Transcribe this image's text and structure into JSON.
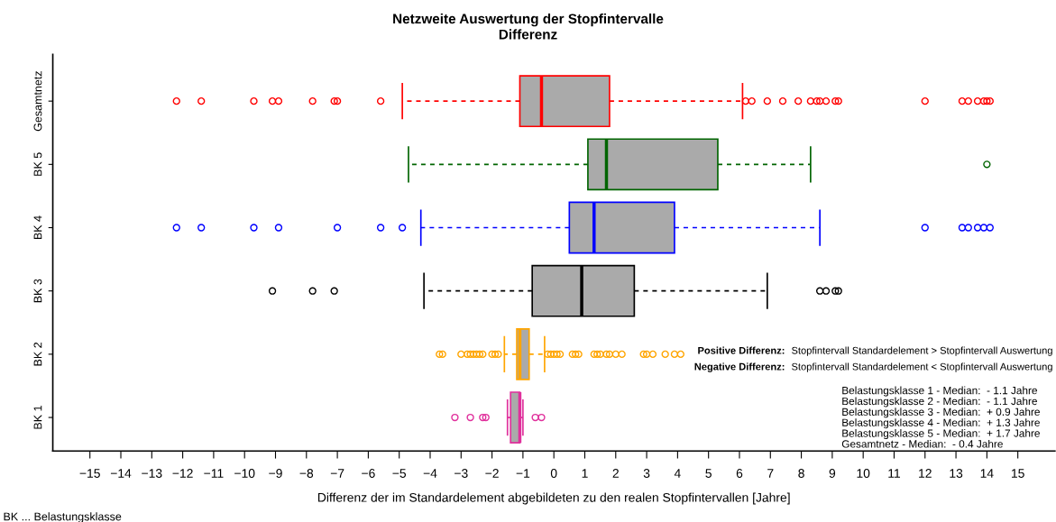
{
  "chart_data": {
    "type": "box",
    "orientation": "horizontal",
    "title": "Netzweite Auswertung der Stopfintervalle",
    "subtitle": "Differenz",
    "xlabel": "Differenz der im Standardelement abgebildeten zu den realen Stopfintervallen [Jahre]",
    "categories": [
      "Gesamtnetz",
      "BK 5",
      "BK 4",
      "BK 3",
      "BK 2",
      "BK 1"
    ],
    "colors": [
      "#ff0000",
      "#006400",
      "#0000ff",
      "#000000",
      "#ffa500",
      "#e0309c"
    ],
    "boxes": [
      {
        "low": -4.9,
        "q1": -1.1,
        "median": -0.4,
        "q3": 1.8,
        "high": 6.1,
        "outliers": [
          -12.2,
          -11.4,
          -9.7,
          -9.1,
          -8.9,
          -7.8,
          -7.1,
          -7.0,
          -5.6,
          6.2,
          6.4,
          6.9,
          7.4,
          7.9,
          8.3,
          8.5,
          8.6,
          8.8,
          9.1,
          9.2,
          12.0,
          13.2,
          13.4,
          13.7,
          13.9,
          14.0,
          14.1
        ]
      },
      {
        "low": -4.7,
        "q1": 1.1,
        "median": 1.7,
        "q3": 5.3,
        "high": 8.3,
        "outliers": [
          14.0
        ]
      },
      {
        "low": -4.3,
        "q1": 0.5,
        "median": 1.3,
        "q3": 3.9,
        "high": 8.6,
        "outliers": [
          -12.2,
          -11.4,
          -9.7,
          -8.9,
          -7.0,
          -5.6,
          -4.9,
          12.0,
          13.2,
          13.4,
          13.7,
          13.9,
          14.1
        ]
      },
      {
        "low": -4.2,
        "q1": -0.7,
        "median": 0.9,
        "q3": 2.6,
        "high": 6.9,
        "outliers": [
          -9.1,
          -7.8,
          -7.1,
          8.6,
          8.8,
          9.1,
          9.2
        ]
      },
      {
        "low": -1.6,
        "q1": -1.2,
        "median": -1.1,
        "q3": -0.8,
        "high": -0.3,
        "outliers": [
          -3.7,
          -3.6,
          -3.0,
          -2.8,
          -2.7,
          -2.6,
          -2.5,
          -2.4,
          -2.3,
          -2.0,
          -1.9,
          -1.8,
          -0.2,
          -0.1,
          0.0,
          0.1,
          0.2,
          0.6,
          0.7,
          0.8,
          1.3,
          1.4,
          1.5,
          1.7,
          1.8,
          2.0,
          2.2,
          2.9,
          3.0,
          3.2,
          3.6,
          3.9,
          4.1
        ]
      },
      {
        "low": -1.5,
        "q1": -1.4,
        "median": -1.1,
        "q3": -1.1,
        "high": -1.0,
        "outliers": [
          -3.2,
          -2.7,
          -2.3,
          -2.2,
          -0.6,
          -0.4
        ]
      }
    ],
    "xlim": [
      -16.2,
      16.2
    ],
    "xticks": [
      {
        "value": -15,
        "label": "−15"
      },
      {
        "value": -14,
        "label": "−14"
      },
      {
        "value": -13,
        "label": "−13"
      },
      {
        "value": -12,
        "label": "−12"
      },
      {
        "value": -11,
        "label": "−11"
      },
      {
        "value": -10,
        "label": "−10"
      },
      {
        "value": -9,
        "label": "−9"
      },
      {
        "value": -8,
        "label": "−8"
      },
      {
        "value": -7,
        "label": "−7"
      },
      {
        "value": -6,
        "label": "−6"
      },
      {
        "value": -5,
        "label": "−5"
      },
      {
        "value": -4,
        "label": "−4"
      },
      {
        "value": -3,
        "label": "−3"
      },
      {
        "value": -2,
        "label": "−2"
      },
      {
        "value": -1,
        "label": "−1"
      },
      0,
      1,
      2,
      3,
      4,
      5,
      6,
      7,
      8,
      9,
      10,
      11,
      12,
      13,
      14,
      15
    ],
    "grid": false,
    "legend": false,
    "marker": "circle",
    "annotations": [
      "Positive Differenz:",
      "Stopfintervall Standardelement > Stopfintervall Auswertung",
      "Negative Differenz:",
      "Stopfintervall Standardelement < Stopfintervall Auswertung",
      "Belastungsklasse 1 - Median:  - 1.1 Jahre",
      "Belastungsklasse 2 - Median:  - 1.1 Jahre",
      "Belastungsklasse 3 - Median:  + 0.9 Jahre",
      "Belastungsklasse 4 - Median:  + 1.3 Jahre",
      "Belastungsklasse 5 - Median:  + 1.7 Jahre",
      "Gesamtnetz - Median:  - 0.4 Jahre",
      "BK ... Belastungsklasse"
    ]
  }
}
